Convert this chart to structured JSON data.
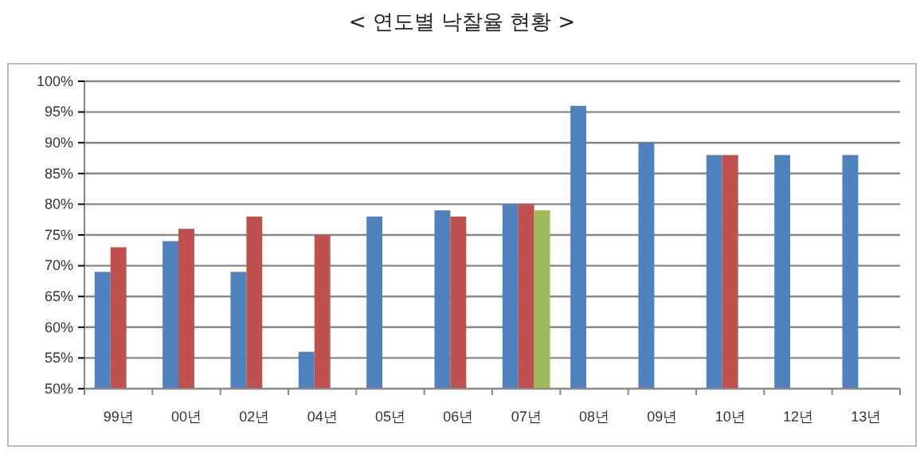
{
  "chart_data": {
    "type": "bar",
    "title": "< 연도별 낙찰율 현황 >",
    "categories": [
      "99년",
      "00년",
      "02년",
      "04년",
      "05년",
      "06년",
      "07년",
      "08년",
      "09년",
      "10년",
      "12년",
      "13년"
    ],
    "series": [
      {
        "color": "#4f81bd",
        "values": [
          69,
          74,
          69,
          56,
          78,
          79,
          80,
          96,
          90,
          88,
          88,
          88
        ]
      },
      {
        "color": "#c0504d",
        "values": [
          73,
          76,
          78,
          75,
          null,
          78,
          80,
          null,
          null,
          88,
          null,
          null
        ]
      },
      {
        "color": "#9bbb59",
        "values": [
          null,
          null,
          null,
          null,
          null,
          null,
          79,
          null,
          null,
          null,
          null,
          null
        ]
      }
    ],
    "ylim": [
      50,
      100
    ],
    "yticks": [
      {
        "value": 50,
        "label": "50%"
      },
      {
        "value": 55,
        "label": "55%"
      },
      {
        "value": 60,
        "label": "60%"
      },
      {
        "value": 65,
        "label": "65%"
      },
      {
        "value": 70,
        "label": "70%"
      },
      {
        "value": 75,
        "label": "75%"
      },
      {
        "value": 80,
        "label": "80%"
      },
      {
        "value": 85,
        "label": "85%"
      },
      {
        "value": 90,
        "label": "90%"
      },
      {
        "value": 95,
        "label": "95%"
      },
      {
        "value": 100,
        "label": "100%"
      }
    ],
    "grid": "y"
  }
}
